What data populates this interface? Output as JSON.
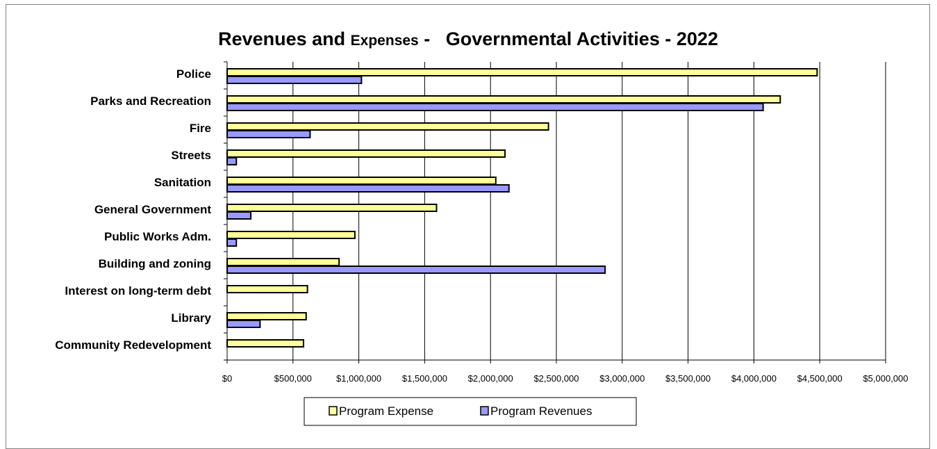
{
  "chart_data": {
    "type": "bar",
    "orientation": "horizontal",
    "title": {
      "part1": "Revenues and ",
      "part2": "Expenses",
      "part3": " -   Governmental Activities - 2022"
    },
    "categories": [
      "Police",
      "Parks and Recreation",
      "Fire",
      "Streets",
      "Sanitation",
      "General Government",
      "Public Works Adm.",
      "Building and zoning",
      "Interest on long-term debt",
      "Library",
      "Community Redevelopment"
    ],
    "series": [
      {
        "name": "Program Expense",
        "color": "#ffff99",
        "values": [
          4480000,
          4200000,
          2440000,
          2110000,
          2040000,
          1590000,
          970000,
          850000,
          610000,
          600000,
          580000
        ]
      },
      {
        "name": "Program Revenues",
        "color": "#9999ff",
        "values": [
          1020000,
          4070000,
          630000,
          70000,
          2140000,
          180000,
          70000,
          2870000,
          0,
          250000,
          0
        ]
      }
    ],
    "x_ticks": [
      "$0",
      "$500,000",
      "$1,000,000",
      "$1,500,000",
      "$2,000,000",
      "$2,500,000",
      "$3,000,000",
      "$3,500,000",
      "$4,000,000",
      "$4,500,000",
      "$5,000,000"
    ],
    "xlim": [
      0,
      5000000
    ],
    "grid": true,
    "legend_position": "bottom"
  }
}
